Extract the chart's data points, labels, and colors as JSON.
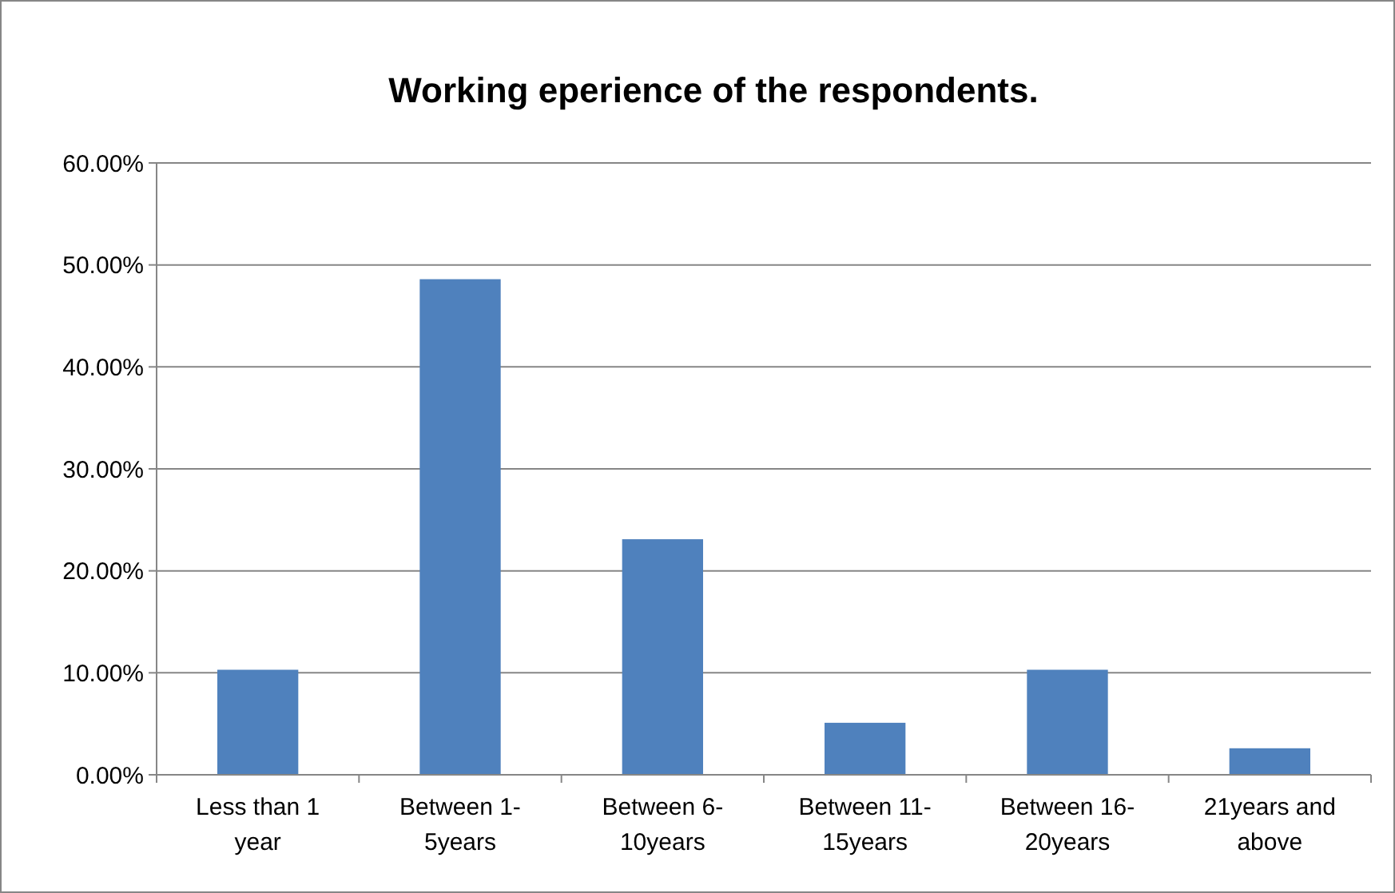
{
  "chart_data": {
    "type": "bar",
    "title": "Working eperience of the respondents.",
    "categories": [
      "Less than 1 year",
      "Between 1- 5years",
      "Between 6- 10years",
      "Between 11- 15years",
      "Between 16- 20years",
      "21years and above"
    ],
    "values": [
      10.3,
      48.6,
      23.1,
      5.1,
      10.3,
      2.6
    ],
    "color": "#4f81bd",
    "ylim": [
      0,
      60
    ],
    "yticks": [
      {
        "value": 0,
        "label": "0.00%"
      },
      {
        "value": 10,
        "label": "10.00%"
      },
      {
        "value": 20,
        "label": "20.00%"
      },
      {
        "value": 30,
        "label": "30.00%"
      },
      {
        "value": 40,
        "label": "40.00%"
      },
      {
        "value": 50,
        "label": "50.00%"
      },
      {
        "value": 60,
        "label": "60.00%"
      }
    ],
    "grid": "y"
  }
}
